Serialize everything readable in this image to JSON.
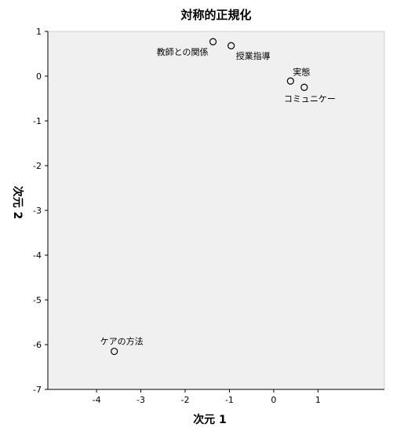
{
  "chart_data": {
    "type": "scatter",
    "title": "対称的正規化",
    "xlabel": "次元 1",
    "ylabel": "次元 2",
    "xlim": [
      -5.1,
      2.5
    ],
    "ylim": [
      -7,
      1
    ],
    "xticks": [
      -4,
      -3,
      -2,
      -1,
      0,
      1
    ],
    "yticks": [
      1,
      0,
      -1,
      -2,
      -3,
      -4,
      -5,
      -6,
      -7
    ],
    "grid": false,
    "legend": "none",
    "points": [
      {
        "label": "教師との関係",
        "x": -1.37,
        "y": 0.77,
        "label_pos": "left-below"
      },
      {
        "label": "授業指導",
        "x": -0.96,
        "y": 0.68,
        "label_pos": "right-below"
      },
      {
        "label": "実態",
        "x": 0.38,
        "y": -0.11,
        "label_pos": "above-right"
      },
      {
        "label": "コミュニケー",
        "x": 0.69,
        "y": -0.25,
        "label_pos": "below"
      },
      {
        "label": "ケアの方法",
        "x": -3.6,
        "y": -6.15,
        "label_pos": "above"
      }
    ],
    "colors": {
      "plot_background": "#f0f0f0",
      "marker_stroke": "#000000",
      "axis": "#000000"
    }
  }
}
